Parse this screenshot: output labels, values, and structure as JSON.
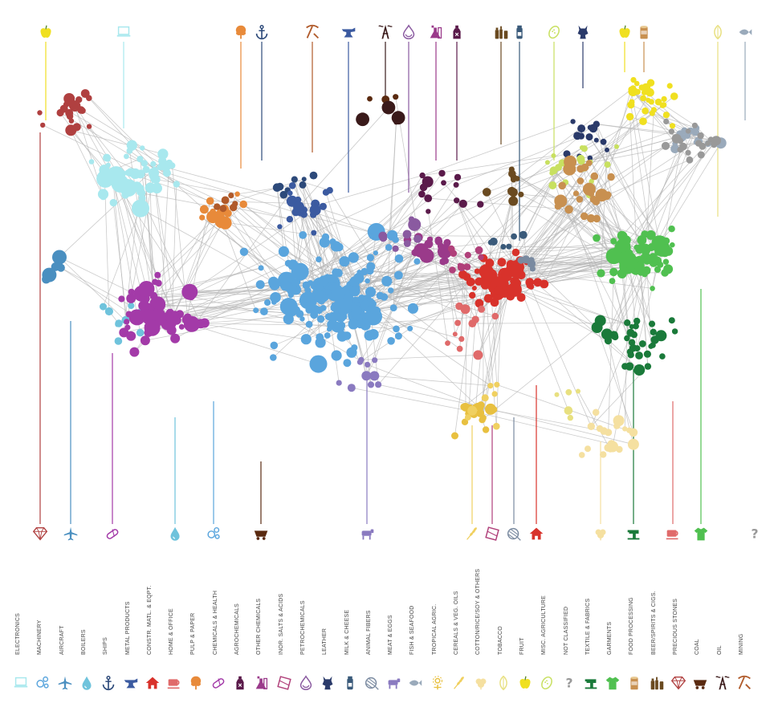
{
  "chart_data": {
    "type": "network",
    "title": "",
    "description_labels_only": true,
    "sectors": [
      {
        "name": "ELECTRONICS",
        "color": "#a8e8ee",
        "icon": "laptop-icon"
      },
      {
        "name": "MACHINERY",
        "color": "#5aa5dd",
        "icon": "gears-icon"
      },
      {
        "name": "AIRCRAFT",
        "color": "#4a8fc0",
        "icon": "airplane-icon"
      },
      {
        "name": "BOILERS",
        "color": "#6fc3dc",
        "icon": "water-drop-icon"
      },
      {
        "name": "SHIPS",
        "color": "#2d4a7a",
        "icon": "anchor-icon"
      },
      {
        "name": "METAL PRODUCTS",
        "color": "#3b5aa0",
        "icon": "anvil-icon"
      },
      {
        "name": "CONSTR. MATL. & EQPT.",
        "color": "#d8322b",
        "icon": "house-icon"
      },
      {
        "name": "HOME & OFFICE",
        "color": "#e06a6a",
        "icon": "cup-icon"
      },
      {
        "name": "PULP & PAPER",
        "color": "#e88a3a",
        "icon": "tree-icon"
      },
      {
        "name": "CHEMICALS & HEALTH",
        "color": "#a33aa8",
        "icon": "pill-icon"
      },
      {
        "name": "AGROCHEMICALS",
        "color": "#5a1a4a",
        "icon": "bottle-icon"
      },
      {
        "name": "OTHER CHEMICALS",
        "color": "#9a3a8a",
        "icon": "flask-icon"
      },
      {
        "name": "INOR. SALTS & ACIDS",
        "color": "#b0407a",
        "icon": "crystal-icon"
      },
      {
        "name": "PETROCHEMICALS",
        "color": "#8a5aa0",
        "icon": "drop-ring-icon"
      },
      {
        "name": "LEATHER",
        "color": "#2a3a6a",
        "icon": "hide-icon"
      },
      {
        "name": "MILK & CHEESE",
        "color": "#3a5a7a",
        "icon": "milk-bottle-icon"
      },
      {
        "name": "ANIMAL FIBERS",
        "color": "#7a8aa0",
        "icon": "yarn-icon"
      },
      {
        "name": "MEAT & EGGS",
        "color": "#8a7ac0",
        "icon": "cow-icon"
      },
      {
        "name": "FISH & SEAFOOD",
        "color": "#9aaabb",
        "icon": "fish-icon"
      },
      {
        "name": "TROPICAL AGRIC.",
        "color": "#e8c040",
        "icon": "flower-icon"
      },
      {
        "name": "CEREALS & VEG. OILS",
        "color": "#f0d060",
        "icon": "wheat-icon"
      },
      {
        "name": "COTTON/RICE/SOY & OTHERS",
        "color": "#f5e0a0",
        "icon": "cotton-icon"
      },
      {
        "name": "TOBACCO",
        "color": "#e8e080",
        "icon": "leaf-icon"
      },
      {
        "name": "FRUIT",
        "color": "#f0e020",
        "icon": "apple-icon"
      },
      {
        "name": "MISC. AGRICULTURE",
        "color": "#c8e060",
        "icon": "melon-icon"
      },
      {
        "name": "NOT CLASSIFIED",
        "color": "#999999",
        "icon": "question-icon"
      },
      {
        "name": "TEXTILE & FABRICS",
        "color": "#1a7a3a",
        "icon": "sewing-machine-icon"
      },
      {
        "name": "GARMENTS",
        "color": "#50c050",
        "icon": "shirt-icon"
      },
      {
        "name": "FOOD PROCESSING",
        "color": "#c89050",
        "icon": "can-icon"
      },
      {
        "name": "BEER/SPIRITS & CIGS.",
        "color": "#6a4a20",
        "icon": "bottles-icon"
      },
      {
        "name": "PRECIOUS STONES",
        "color": "#b04040",
        "icon": "diamond-icon"
      },
      {
        "name": "COAL",
        "color": "#5a2a10",
        "icon": "coal-cart-icon"
      },
      {
        "name": "OIL",
        "color": "#3a1a1a",
        "icon": "oil-rig-icon"
      },
      {
        "name": "MINING",
        "color": "#b05a2a",
        "icon": "pickaxe-icon"
      }
    ]
  }
}
